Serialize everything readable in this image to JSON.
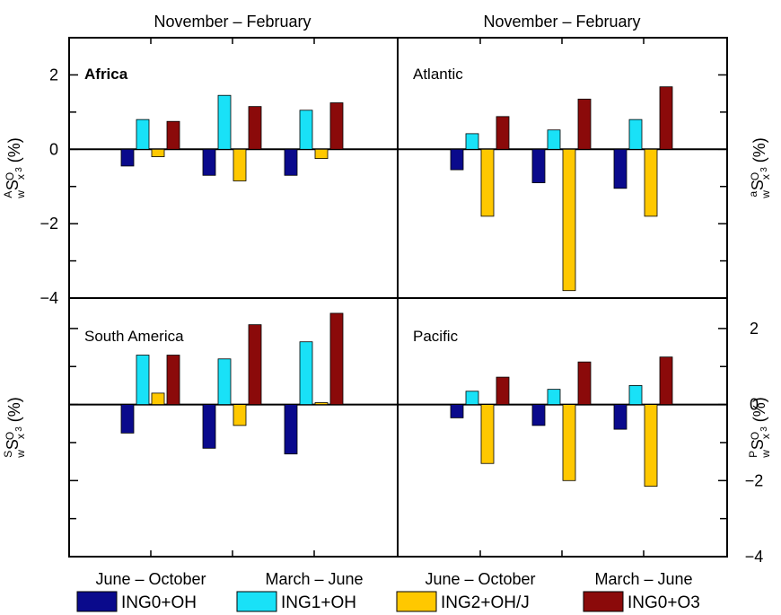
{
  "colors": {
    "ING0+OH": "#0a0a8c",
    "ING1+OH": "#19e1f7",
    "ING2+OH/J": "#ffc800",
    "ING0+O3": "#8b0a0a",
    "axis": "#000000"
  },
  "top_labels": [
    "November – February",
    "November – February"
  ],
  "bottom_labels": [
    "June – October",
    "March – June",
    "June – October",
    "March – June"
  ],
  "legend": [
    "ING0+OH",
    "ING1+OH",
    "ING2+OH/J",
    "ING0+O3"
  ],
  "chart_data": [
    {
      "type": "bar",
      "panel": "top-left",
      "title": "Africa",
      "ylabel": {
        "base": "S",
        "pre_sup": "A",
        "pre_sub": "w",
        "sub": "x",
        "sub_sup": "O",
        "sub_sub": "3",
        "unit": "(%)"
      },
      "yaxis_side": "left",
      "ylim": [
        -4,
        3
      ],
      "yticks": [
        -4,
        -2,
        0,
        2
      ],
      "categories": [
        "November – February",
        "June – October",
        "March – June"
      ],
      "series": [
        {
          "name": "ING0+OH",
          "values": [
            -0.45,
            -0.7,
            -0.7
          ]
        },
        {
          "name": "ING1+OH",
          "values": [
            0.8,
            1.45,
            1.05
          ]
        },
        {
          "name": "ING2+OH/J",
          "values": [
            -0.2,
            -0.85,
            -0.25
          ]
        },
        {
          "name": "ING0+O3",
          "values": [
            0.75,
            1.15,
            1.25
          ]
        }
      ]
    },
    {
      "type": "bar",
      "panel": "top-right",
      "title": "Atlantic",
      "ylabel": {
        "base": "S",
        "pre_sup": "a",
        "pre_sub": "w",
        "sub": "x",
        "sub_sup": "O",
        "sub_sub": "3",
        "unit": "(%)"
      },
      "yaxis_side": "right",
      "ylim": [
        -4,
        3
      ],
      "yticks": [
        -4,
        -2,
        0,
        2
      ],
      "categories": [
        "November – February",
        "June – October",
        "March – June"
      ],
      "series": [
        {
          "name": "ING0+OH",
          "values": [
            -0.55,
            -0.9,
            -1.05
          ]
        },
        {
          "name": "ING1+OH",
          "values": [
            0.42,
            0.52,
            0.8
          ]
        },
        {
          "name": "ING2+OH/J",
          "values": [
            -1.8,
            -3.8,
            -1.8
          ]
        },
        {
          "name": "ING0+O3",
          "values": [
            0.88,
            1.35,
            1.68
          ]
        }
      ]
    },
    {
      "type": "bar",
      "panel": "bottom-left",
      "title": "South America",
      "ylabel": {
        "base": "S",
        "pre_sup": "S",
        "pre_sub": "w",
        "sub": "x",
        "sub_sup": "O",
        "sub_sub": "3",
        "unit": "(%)"
      },
      "yaxis_side": "left",
      "ylim": [
        -4,
        2.8
      ],
      "yticks": [
        -4,
        -2,
        0,
        2
      ],
      "categories": [
        "November – February",
        "June – October",
        "March – June"
      ],
      "series": [
        {
          "name": "ING0+OH",
          "values": [
            -0.75,
            -1.15,
            -1.3
          ]
        },
        {
          "name": "ING1+OH",
          "values": [
            1.3,
            1.2,
            1.65
          ]
        },
        {
          "name": "ING2+OH/J",
          "values": [
            0.3,
            -0.55,
            0.05
          ]
        },
        {
          "name": "ING0+O3",
          "values": [
            1.3,
            2.1,
            2.4
          ]
        }
      ]
    },
    {
      "type": "bar",
      "panel": "bottom-right",
      "title": "Pacific",
      "ylabel": {
        "base": "S",
        "pre_sup": "P",
        "pre_sub": "w",
        "sub": "x",
        "sub_sup": "O",
        "sub_sub": "3",
        "unit": "(%)"
      },
      "yaxis_side": "right",
      "ylim": [
        -4,
        2.8
      ],
      "yticks": [
        -4,
        -2,
        0,
        2
      ],
      "categories": [
        "November – February",
        "June – October",
        "March – June"
      ],
      "series": [
        {
          "name": "ING0+OH",
          "values": [
            -0.35,
            -0.55,
            -0.65
          ]
        },
        {
          "name": "ING1+OH",
          "values": [
            0.35,
            0.4,
            0.5
          ]
        },
        {
          "name": "ING2+OH/J",
          "values": [
            -1.55,
            -2.0,
            -2.15
          ]
        },
        {
          "name": "ING0+O3",
          "values": [
            0.72,
            1.12,
            1.25
          ]
        }
      ]
    }
  ]
}
